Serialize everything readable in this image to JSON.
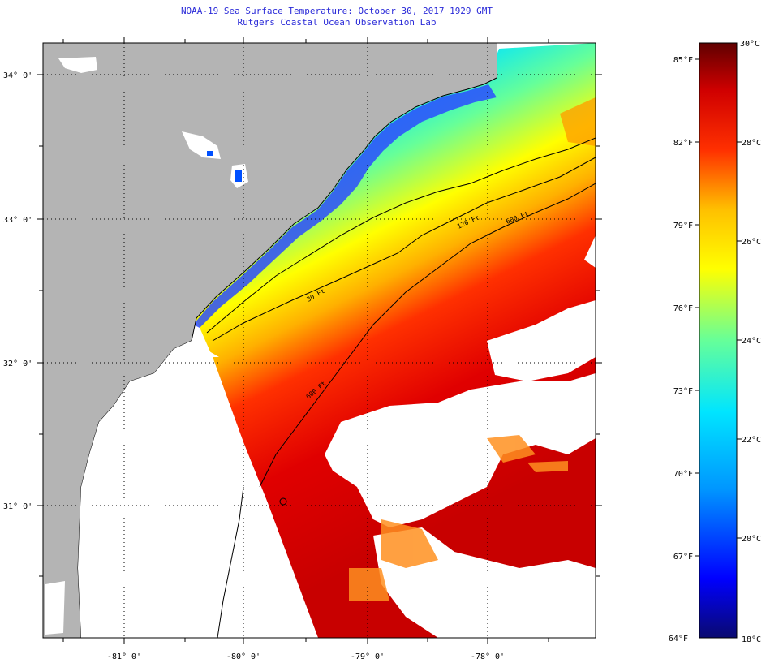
{
  "title": "NOAA-19 Sea Surface Temperature:  October 30, 2017 1929 GMT",
  "subtitle": "Rutgers Coastal Ocean Observation Lab",
  "map": {
    "lat_labels": [
      "34° 0'",
      "33° 0'",
      "32° 0'",
      "31° 0'"
    ],
    "lon_labels": [
      "-81° 0'",
      "-80° 0'",
      "-79° 0'",
      "-78° 0'"
    ],
    "contours": [
      {
        "label": "30 Ft"
      },
      {
        "label": "120 Ft"
      },
      {
        "label": "600 Ft"
      },
      {
        "label": "600 Ft"
      }
    ],
    "land_color": "#b4b4b4",
    "cloud_color": "#ffffff"
  },
  "colorbar": {
    "f_labels": [
      "85°F",
      "82°F",
      "79°F",
      "76°F",
      "73°F",
      "70°F",
      "67°F",
      "64°F"
    ],
    "c_labels": [
      "30°C",
      "28°C",
      "26°C",
      "24°C",
      "22°C",
      "20°C",
      "18°C"
    ],
    "colors": [
      "#0a0a70",
      "#0000ff",
      "#0096ff",
      "#00e5ff",
      "#66ff99",
      "#ffff00",
      "#ffc000",
      "#ff3000",
      "#d00000",
      "#600000"
    ]
  }
}
